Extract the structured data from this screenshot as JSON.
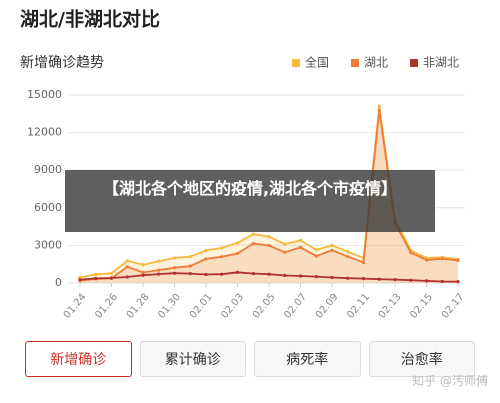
{
  "chart_data": {
    "type": "line",
    "title": "湖北/非湖北对比",
    "subtitle": "新增确诊趋势",
    "categories": [
      "01.24",
      null,
      "01.26",
      null,
      "01.28",
      null,
      "01.30",
      null,
      "02.01",
      null,
      "02.03",
      null,
      "02.05",
      null,
      "02.07",
      null,
      "02.09",
      null,
      "02.11",
      null,
      "02.13",
      null,
      "02.15",
      null,
      "02.17"
    ],
    "series": [
      {
        "name": "全国",
        "color": "#f5b93b",
        "area": true,
        "values": [
          450,
          690,
          770,
          1770,
          1460,
          1740,
          2000,
          2100,
          2600,
          2800,
          3200,
          3900,
          3700,
          3100,
          3400,
          2650,
          3000,
          2500,
          2000,
          14100,
          5100,
          2600,
          2000,
          2050,
          1900
        ]
      },
      {
        "name": "湖北",
        "color": "#ee7b3a",
        "area": true,
        "values": [
          180,
          320,
          370,
          1290,
          840,
          1030,
          1220,
          1350,
          1920,
          2100,
          2350,
          3150,
          2990,
          2450,
          2840,
          2150,
          2620,
          2100,
          1640,
          13800,
          4800,
          2420,
          1840,
          1930,
          1800
        ]
      },
      {
        "name": "非湖北",
        "color": "#b0322e",
        "area": false,
        "values": [
          270,
          370,
          400,
          480,
          620,
          710,
          780,
          750,
          680,
          700,
          850,
          750,
          700,
          600,
          560,
          510,
          440,
          380,
          350,
          300,
          270,
          220,
          170,
          120,
          110
        ]
      }
    ],
    "ylim": [
      0,
      15000
    ],
    "yticks": [
      0,
      3000,
      6000,
      9000,
      12000,
      15000
    ],
    "grid": true
  },
  "overlay": "【湖北各个地区的疫情,湖北各个市疫情】",
  "tabs": [
    "新增确诊",
    "累计确诊",
    "病死率",
    "治愈率"
  ],
  "watermark": "知乎 @汚师傅"
}
